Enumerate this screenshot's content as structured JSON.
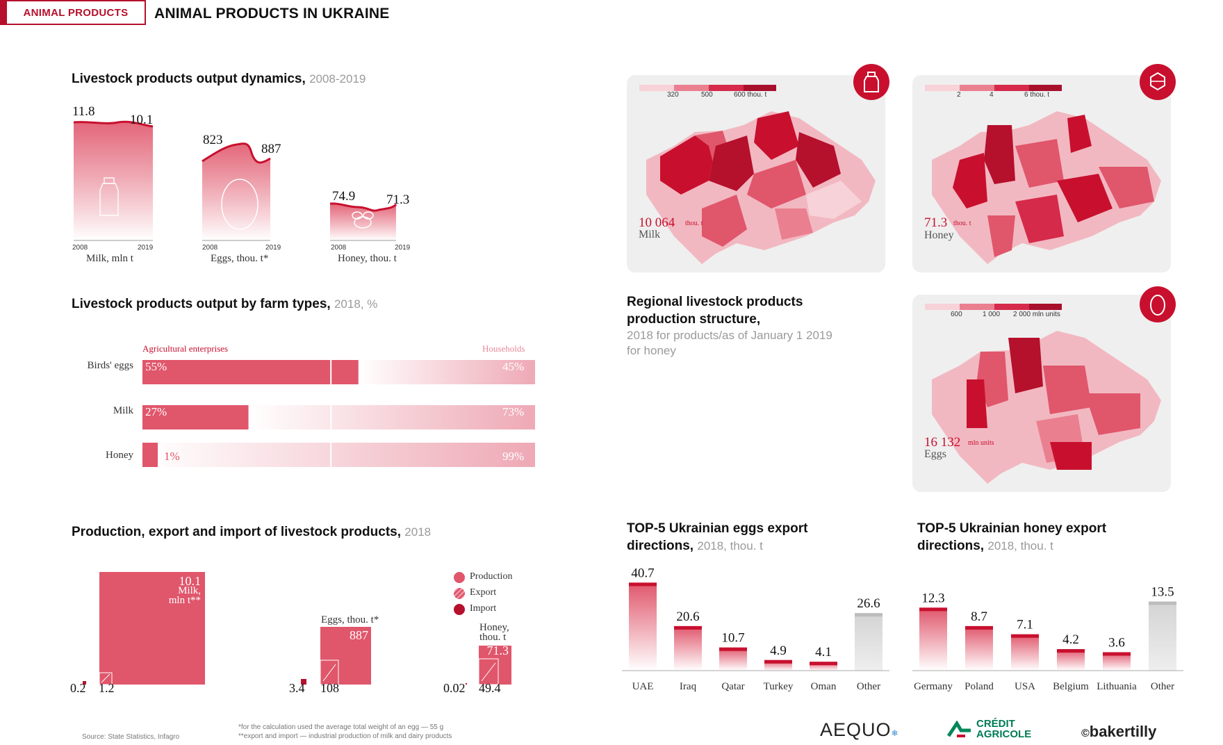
{
  "header": {
    "tag": "ANIMAL PRODUCTS",
    "title": "ANIMAL PRODUCTS IN UKRAINE"
  },
  "colors": {
    "accent": "#c8102e",
    "pink": "#e0566b",
    "light_pink": "#f2b8c1",
    "grey": "#d9d9d9"
  },
  "dynamics": {
    "title": "Livestock products output dynamics,",
    "period": "2008-2019",
    "charts": [
      {
        "label": "Milk, mln t",
        "start_year": "2008",
        "end_year": "2019",
        "start_value": "11.8",
        "end_value": "10.1",
        "icon": "milk-bottle-icon"
      },
      {
        "label": "Eggs, thou. t*",
        "start_year": "2008",
        "end_year": "2019",
        "start_value": "823",
        "end_value": "887",
        "icon": "egg-icon"
      },
      {
        "label": "Honey, thou. t",
        "start_year": "2008",
        "end_year": "2019",
        "start_value": "74.9",
        "end_value": "71.3",
        "icon": "bee-icon"
      }
    ]
  },
  "farm_types": {
    "title": "Livestock products output by farm types,",
    "period": "2018, %",
    "left_header": "Agricultural enterprises",
    "right_header": "Households",
    "rows": [
      {
        "label": "Birds' eggs",
        "left": "55%",
        "right": "45%",
        "icon": "egg-icon"
      },
      {
        "label": "Milk",
        "left": "27%",
        "right": "73%",
        "icon": "milk-bottle-icon"
      },
      {
        "label": "Honey",
        "left": "1%",
        "right": "99%",
        "icon": "honeycomb-icon"
      }
    ]
  },
  "pei": {
    "title": "Production, export and import of livestock products,",
    "period": "2018",
    "legend": [
      "Production",
      "Export",
      "Import"
    ],
    "milk": {
      "label_lines": [
        "10.1",
        "Milk,",
        "mln t**"
      ],
      "import": "0.2",
      "export": "1.2"
    },
    "eggs": {
      "label": "Eggs, thou. t*",
      "production": "887",
      "import": "3.4",
      "export": "108"
    },
    "honey": {
      "label_lines": [
        "Honey,",
        "thou. t"
      ],
      "production": "71.3",
      "import": "0.02",
      "export": "49.4"
    }
  },
  "maps": {
    "milk": {
      "legend": [
        "320",
        "500",
        "600 thou. t"
      ],
      "total": "10 064",
      "unit": "thou. t",
      "name": "Milk",
      "icon": "milk-bottle-icon"
    },
    "honey": {
      "legend": [
        "2",
        "4",
        "6 thou. t"
      ],
      "total": "71.3",
      "unit": "thou. t",
      "name": "Honey",
      "icon": "honeycomb-icon"
    },
    "eggs": {
      "legend": [
        "600",
        "1 000",
        "2 000 mln units"
      ],
      "total": "16 132",
      "unit": "mln units",
      "name": "Eggs",
      "icon": "egg-icon"
    }
  },
  "regional": {
    "title_lines": [
      "Regional livestock products",
      "production structure,"
    ],
    "sub_lines": [
      "2018 for products/as of January 1 2019",
      "for honey"
    ]
  },
  "eggs_export": {
    "title_lines": [
      "TOP-5 Ukrainian eggs export",
      "directions,"
    ],
    "period": "2018, thou. t"
  },
  "honey_export": {
    "title_lines": [
      "TOP-5 Ukrainian honey export",
      "directions,"
    ],
    "period": "2018, thou. t"
  },
  "chart_data": [
    {
      "type": "line",
      "title": "Milk, mln t",
      "x": [
        "2008",
        "2019"
      ],
      "values": [
        11.8,
        10.1
      ]
    },
    {
      "type": "line",
      "title": "Eggs, thou. t*",
      "x": [
        "2008",
        "2019"
      ],
      "values": [
        823,
        887
      ]
    },
    {
      "type": "line",
      "title": "Honey, thou. t",
      "x": [
        "2008",
        "2019"
      ],
      "values": [
        74.9,
        71.3
      ]
    },
    {
      "type": "bar",
      "title": "Livestock products output by farm types, 2018, %",
      "categories": [
        "Birds' eggs",
        "Milk",
        "Honey"
      ],
      "series": [
        {
          "name": "Agricultural enterprises",
          "values": [
            55,
            27,
            1
          ]
        },
        {
          "name": "Households",
          "values": [
            45,
            73,
            99
          ]
        }
      ]
    },
    {
      "type": "bar",
      "title": "TOP-5 Ukrainian eggs export directions, 2018, thou. t",
      "categories": [
        "UAE",
        "Iraq",
        "Qatar",
        "Turkey",
        "Oman",
        "Other"
      ],
      "values": [
        40.7,
        20.6,
        10.7,
        4.9,
        4.1,
        26.6
      ],
      "labels": [
        "40.7",
        "20.6",
        "10.7",
        "4.9",
        "4.1",
        "26.6"
      ]
    },
    {
      "type": "bar",
      "title": "TOP-5 Ukrainian honey export directions, 2018, thou. t",
      "categories": [
        "Germany",
        "Poland",
        "USA",
        "Belgium",
        "Lithuania",
        "Other"
      ],
      "values": [
        12.3,
        8.7,
        7.1,
        4.2,
        3.6,
        13.5
      ],
      "labels": [
        "12.3",
        "8.7",
        "7.1",
        "4.2",
        "3.6",
        "13.5"
      ]
    }
  ],
  "footer": {
    "source": "Source: State Statistics, Infagro",
    "note1": "*for the calculation used the average total weight of an egg — 55 g",
    "note2": "**export and import — industrial production of milk and dairy products",
    "logos": [
      "AEQUO",
      "CRÉDIT",
      "AGRICOLE",
      "bakertilly"
    ]
  }
}
